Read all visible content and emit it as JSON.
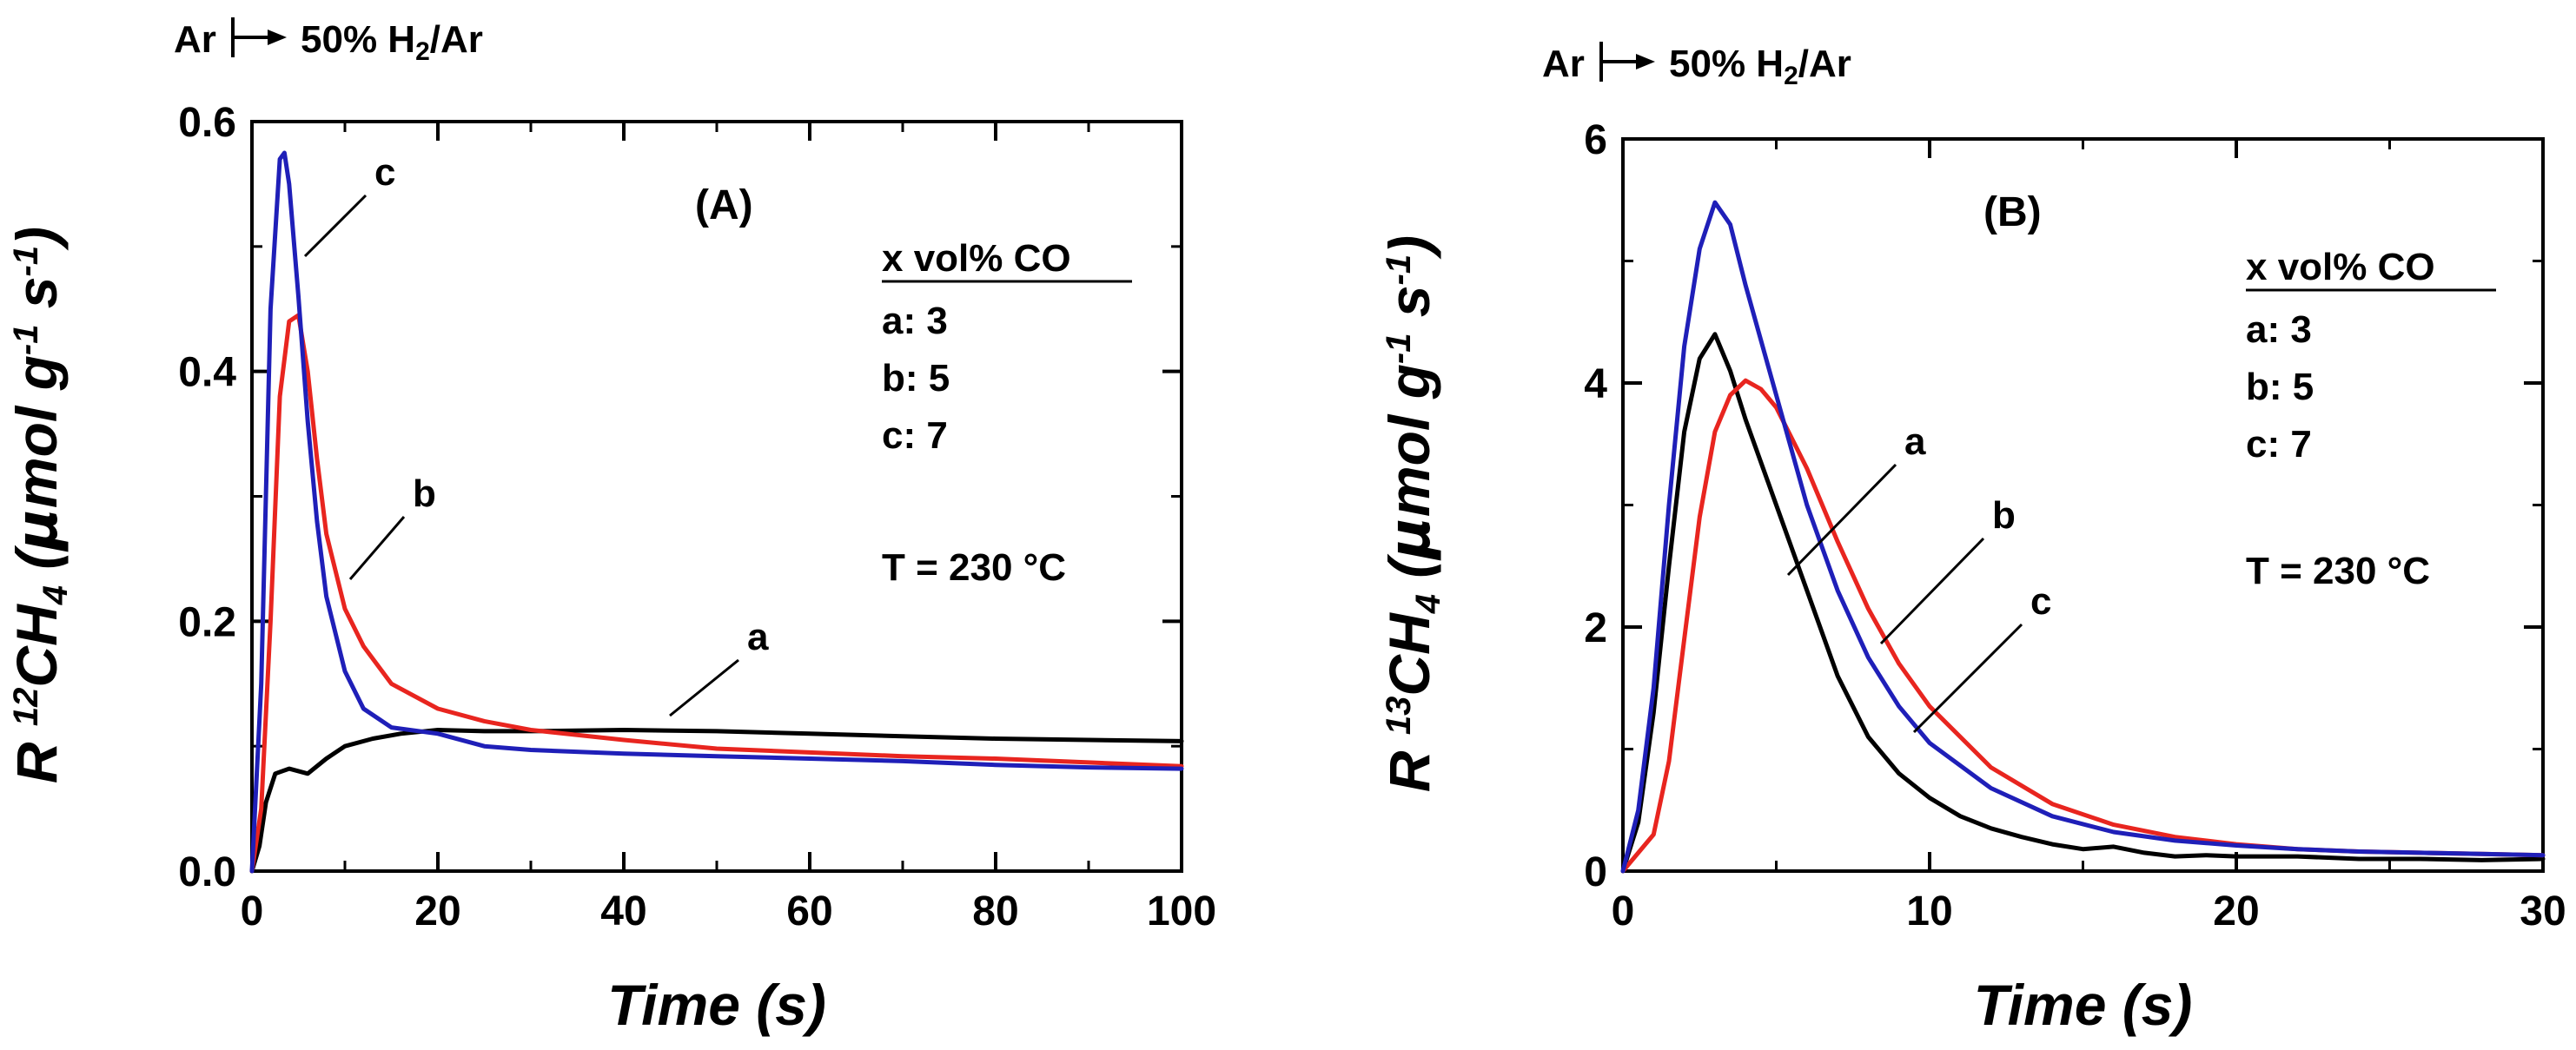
{
  "chart_data": [
    {
      "type": "line",
      "panel_label": "(A)",
      "annotation": {
        "from": "Ar",
        "to": "50% H",
        "to_sub": "2",
        "to_tail": "/Ar"
      },
      "xlabel": "Time (s)",
      "ylabel": {
        "prefix": "R ",
        "sup": "12",
        "base": "CH",
        "sub": "4",
        "unit_open": " (",
        "mu": "μ",
        "unit_main": "mol g",
        "exp1": "-1",
        "unit_s": " s",
        "exp2": "-1",
        "unit_close": ")"
      },
      "xlim": [
        0,
        100
      ],
      "ylim": [
        0,
        0.6
      ],
      "xticks": [
        0,
        20,
        40,
        60,
        80,
        100
      ],
      "xtick_labels": [
        "0",
        "20",
        "40",
        "60",
        "80",
        "100"
      ],
      "yticks": [
        0,
        0.2,
        0.4,
        0.6
      ],
      "ytick_labels": [
        "0.0",
        "0.2",
        "0.4",
        "0.6"
      ],
      "legend": {
        "title": "x vol% CO",
        "entries": [
          "a: 3",
          "b: 5",
          "c: 7"
        ],
        "temperature": "T = 230 °C",
        "placement": "right"
      },
      "series": [
        {
          "name": "a",
          "color": "#000000",
          "x": [
            0,
            0.8,
            1.5,
            2.5,
            4,
            6,
            8,
            10,
            13,
            16,
            20,
            25,
            30,
            40,
            50,
            60,
            70,
            80,
            90,
            100
          ],
          "y": [
            0,
            0.02,
            0.055,
            0.078,
            0.082,
            0.078,
            0.09,
            0.1,
            0.106,
            0.11,
            0.113,
            0.112,
            0.112,
            0.113,
            0.112,
            0.11,
            0.108,
            0.106,
            0.105,
            0.104
          ]
        },
        {
          "name": "b",
          "color": "#e8251f",
          "x": [
            0,
            1,
            2,
            3,
            4,
            5,
            6,
            7,
            8,
            10,
            12,
            15,
            20,
            25,
            30,
            40,
            50,
            60,
            70,
            80,
            90,
            100
          ],
          "y": [
            0,
            0.05,
            0.2,
            0.38,
            0.44,
            0.445,
            0.4,
            0.33,
            0.27,
            0.21,
            0.18,
            0.15,
            0.13,
            0.12,
            0.113,
            0.105,
            0.098,
            0.095,
            0.092,
            0.09,
            0.087,
            0.084
          ]
        },
        {
          "name": "c",
          "color": "#1f1fb8",
          "x": [
            0,
            1,
            2,
            3,
            3.5,
            4,
            5,
            6,
            7,
            8,
            10,
            12,
            15,
            20,
            25,
            30,
            40,
            50,
            60,
            70,
            80,
            90,
            100
          ],
          "y": [
            0,
            0.15,
            0.45,
            0.57,
            0.575,
            0.55,
            0.46,
            0.36,
            0.28,
            0.22,
            0.16,
            0.13,
            0.115,
            0.11,
            0.1,
            0.097,
            0.094,
            0.092,
            0.09,
            0.088,
            0.085,
            0.083,
            0.082
          ]
        }
      ],
      "curve_labels": [
        {
          "text": "a",
          "series": "a"
        },
        {
          "text": "b",
          "series": "b"
        },
        {
          "text": "c",
          "series": "c"
        }
      ]
    },
    {
      "type": "line",
      "panel_label": "(B)",
      "annotation": {
        "from": "Ar",
        "to": "50% H",
        "to_sub": "2",
        "to_tail": "/Ar"
      },
      "xlabel": "Time (s)",
      "ylabel": {
        "prefix": "R ",
        "sup": "13",
        "base": "CH",
        "sub": "4",
        "unit_open": " (",
        "mu": "μ",
        "unit_main": "mol g",
        "exp1": "-1",
        "unit_s": " s",
        "exp2": "-1",
        "unit_close": ")"
      },
      "xlim": [
        0,
        30
      ],
      "ylim": [
        0,
        6
      ],
      "xticks": [
        0,
        10,
        20,
        30
      ],
      "xtick_labels": [
        "0",
        "10",
        "20",
        "30"
      ],
      "yticks": [
        0,
        2,
        4,
        6
      ],
      "ytick_labels": [
        "0",
        "2",
        "4",
        "6"
      ],
      "legend": {
        "title": "x vol% CO",
        "entries": [
          "a: 3",
          "b: 5",
          "c: 7"
        ],
        "temperature": "T = 230 °C",
        "placement": "right"
      },
      "series": [
        {
          "name": "a",
          "color": "#000000",
          "x": [
            0,
            0.5,
            1,
            1.5,
            2,
            2.5,
            3,
            3.5,
            4,
            5,
            6,
            7,
            8,
            9,
            10,
            11,
            12,
            13,
            14,
            15,
            16,
            17,
            18,
            19,
            20,
            22,
            24,
            26,
            28,
            30
          ],
          "y": [
            0,
            0.4,
            1.3,
            2.5,
            3.6,
            4.2,
            4.4,
            4.1,
            3.7,
            3.0,
            2.3,
            1.6,
            1.1,
            0.8,
            0.6,
            0.45,
            0.35,
            0.28,
            0.22,
            0.18,
            0.2,
            0.15,
            0.12,
            0.13,
            0.12,
            0.12,
            0.1,
            0.1,
            0.09,
            0.1
          ]
        },
        {
          "name": "b",
          "color": "#e8251f",
          "x": [
            0,
            1,
            1.5,
            2,
            2.5,
            3,
            3.5,
            4,
            4.5,
            5,
            6,
            7,
            8,
            9,
            10,
            12,
            14,
            16,
            18,
            20,
            22,
            24,
            26,
            28,
            30
          ],
          "y": [
            0,
            0.3,
            0.9,
            1.9,
            2.9,
            3.6,
            3.9,
            4.02,
            3.95,
            3.8,
            3.3,
            2.7,
            2.15,
            1.7,
            1.35,
            0.85,
            0.55,
            0.38,
            0.28,
            0.22,
            0.18,
            0.16,
            0.15,
            0.14,
            0.13
          ]
        },
        {
          "name": "c",
          "color": "#1f1fb8",
          "x": [
            0,
            0.5,
            1,
            1.5,
            2,
            2.5,
            3,
            3.5,
            4,
            5,
            6,
            7,
            8,
            9,
            10,
            12,
            14,
            16,
            18,
            20,
            22,
            24,
            26,
            28,
            30
          ],
          "y": [
            0,
            0.5,
            1.5,
            3.0,
            4.3,
            5.1,
            5.48,
            5.3,
            4.8,
            3.9,
            3.0,
            2.3,
            1.75,
            1.35,
            1.05,
            0.68,
            0.45,
            0.32,
            0.25,
            0.21,
            0.18,
            0.16,
            0.15,
            0.14,
            0.13
          ]
        }
      ],
      "curve_labels": [
        {
          "text": "a",
          "series": "a"
        },
        {
          "text": "b",
          "series": "b"
        },
        {
          "text": "c",
          "series": "c"
        }
      ]
    }
  ]
}
